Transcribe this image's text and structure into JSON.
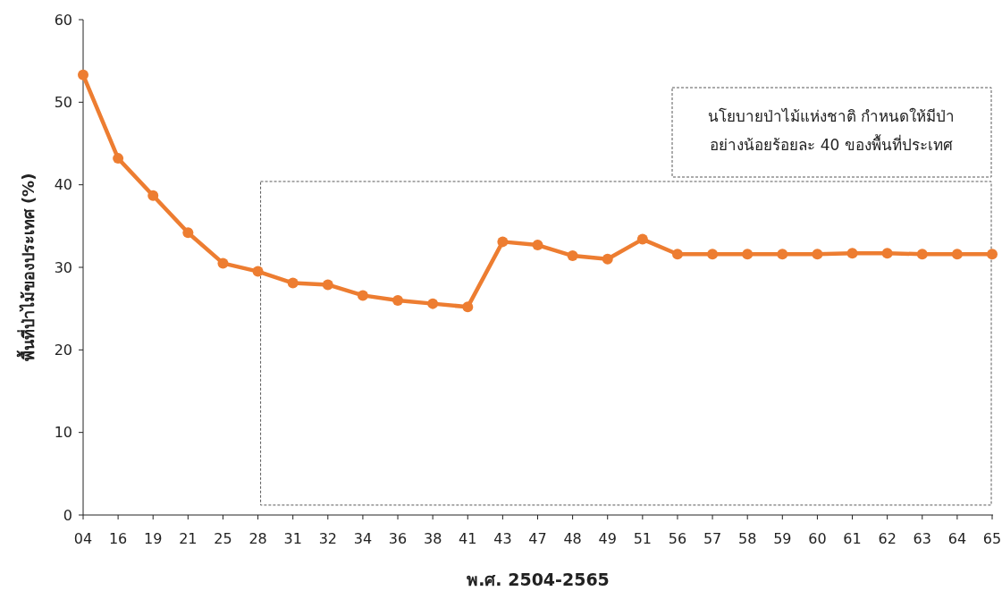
{
  "chart_data": {
    "type": "line",
    "xlabel": "พ.ศ. 2504-2565",
    "ylabel": "พื้นที่ป่าไม้ของประเทศ (%)",
    "categories": [
      "04",
      "16",
      "19",
      "21",
      "25",
      "28",
      "31",
      "32",
      "34",
      "36",
      "38",
      "41",
      "43",
      "47",
      "48",
      "49",
      "51",
      "56",
      "57",
      "58",
      "59",
      "60",
      "61",
      "62",
      "63",
      "64",
      "65"
    ],
    "series": [
      {
        "color": "#ed7d31",
        "values": [
          53.3,
          43.2,
          38.7,
          34.2,
          30.5,
          29.5,
          28.1,
          27.9,
          26.6,
          26.0,
          25.6,
          25.2,
          33.1,
          32.7,
          31.4,
          31.0,
          33.4,
          31.6,
          31.6,
          31.6,
          31.6,
          31.6,
          31.7,
          31.7,
          31.6,
          31.6,
          31.6
        ]
      }
    ],
    "ylim": [
      0,
      60
    ],
    "yticks": [
      0,
      10,
      20,
      30,
      40,
      50,
      60
    ],
    "grid": false,
    "marker": "circle",
    "line_style": "solid",
    "annotations": [
      "นโยบายป่าไม้แห่งชาติ กำหนดให้มีป่า\nอย่างน้อยร้อยละ 40 ของพื้นที่ประเทศ"
    ]
  }
}
